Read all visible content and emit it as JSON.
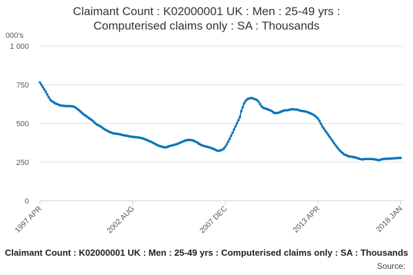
{
  "chart_data": {
    "type": "line",
    "title": "Claimant Count : K02000001 UK : Men : 25-49 yrs : Computerised claims only : SA : Thousands",
    "y_label": "000's",
    "source_label": "Source:",
    "x": [
      "1997 APR",
      "1997 MAY",
      "1997 JUN",
      "1997 JUL",
      "1997 AUG",
      "1997 SEP",
      "1997 OCT",
      "1997 NOV",
      "1997 DEC",
      "1998 JAN",
      "1998 FEB",
      "1998 MAR",
      "1998 APR",
      "1998 MAY",
      "1998 JUN",
      "1998 JUL",
      "1998 AUG",
      "1998 SEP",
      "1998 OCT",
      "1998 NOV",
      "1998 DEC",
      "1999 JAN",
      "1999 FEB",
      "1999 MAR",
      "1999 APR",
      "1999 MAY",
      "1999 JUN",
      "1999 JUL",
      "1999 AUG",
      "1999 SEP",
      "1999 OCT",
      "1999 NOV",
      "1999 DEC",
      "2000 JAN",
      "2000 FEB",
      "2000 MAR",
      "2000 APR",
      "2000 MAY",
      "2000 JUN",
      "2000 JUL",
      "2000 AUG",
      "2000 SEP",
      "2000 OCT",
      "2000 NOV",
      "2000 DEC",
      "2001 JAN",
      "2001 FEB",
      "2001 MAR",
      "2001 APR",
      "2001 MAY",
      "2001 JUN",
      "2001 JUL",
      "2001 AUG",
      "2001 SEP",
      "2001 OCT",
      "2001 NOV",
      "2001 DEC",
      "2002 JAN",
      "2002 FEB",
      "2002 MAR",
      "2002 APR",
      "2002 MAY",
      "2002 JUN",
      "2002 JUL",
      "2002 AUG",
      "2002 SEP",
      "2002 OCT",
      "2002 NOV",
      "2002 DEC",
      "2003 JAN",
      "2003 FEB",
      "2003 MAR",
      "2003 APR",
      "2003 MAY",
      "2003 JUN",
      "2003 JUL",
      "2003 AUG",
      "2003 SEP",
      "2003 OCT",
      "2003 NOV",
      "2003 DEC",
      "2004 JAN",
      "2004 FEB",
      "2004 MAR",
      "2004 APR",
      "2004 MAY",
      "2004 JUN",
      "2004 JUL",
      "2004 AUG",
      "2004 SEP",
      "2004 OCT",
      "2004 NOV",
      "2004 DEC",
      "2005 JAN",
      "2005 FEB",
      "2005 MAR",
      "2005 APR",
      "2005 MAY",
      "2005 JUN",
      "2005 JUL",
      "2005 AUG",
      "2005 SEP",
      "2005 OCT",
      "2005 NOV",
      "2005 DEC",
      "2006 JAN",
      "2006 FEB",
      "2006 MAR",
      "2006 APR",
      "2006 MAY",
      "2006 JUN",
      "2006 JUL",
      "2006 AUG",
      "2006 SEP",
      "2006 OCT",
      "2006 NOV",
      "2006 DEC",
      "2007 JAN",
      "2007 FEB",
      "2007 MAR",
      "2007 APR",
      "2007 MAY",
      "2007 JUN",
      "2007 JUL",
      "2007 AUG",
      "2007 SEP",
      "2007 OCT",
      "2007 NOV",
      "2007 DEC",
      "2008 JAN",
      "2008 FEB",
      "2008 MAR",
      "2008 APR",
      "2008 MAY",
      "2008 JUN",
      "2008 JUL",
      "2008 AUG",
      "2008 SEP",
      "2008 OCT",
      "2008 NOV",
      "2008 DEC",
      "2009 JAN",
      "2009 FEB",
      "2009 MAR",
      "2009 APR",
      "2009 MAY",
      "2009 JUN",
      "2009 JUL",
      "2009 AUG",
      "2009 SEP",
      "2009 OCT",
      "2009 NOV",
      "2009 DEC",
      "2010 JAN",
      "2010 FEB",
      "2010 MAR",
      "2010 APR",
      "2010 MAY",
      "2010 JUN",
      "2010 JUL",
      "2010 AUG",
      "2010 SEP",
      "2010 OCT",
      "2010 NOV",
      "2010 DEC",
      "2011 JAN",
      "2011 FEB",
      "2011 MAR",
      "2011 APR",
      "2011 MAY",
      "2011 JUN",
      "2011 JUL",
      "2011 AUG",
      "2011 SEP",
      "2011 OCT",
      "2011 NOV",
      "2011 DEC",
      "2012 JAN",
      "2012 FEB",
      "2012 MAR",
      "2012 APR",
      "2012 MAY",
      "2012 JUN",
      "2012 JUL",
      "2012 AUG",
      "2012 SEP",
      "2012 OCT",
      "2012 NOV",
      "2012 DEC",
      "2013 JAN",
      "2013 FEB",
      "2013 MAR",
      "2013 APR",
      "2013 MAY",
      "2013 JUN",
      "2013 JUL",
      "2013 AUG",
      "2013 SEP",
      "2013 OCT",
      "2013 NOV",
      "2013 DEC",
      "2014 JAN",
      "2014 FEB",
      "2014 MAR",
      "2014 APR",
      "2014 MAY",
      "2014 JUN",
      "2014 JUL",
      "2014 AUG",
      "2014 SEP",
      "2014 OCT",
      "2014 NOV",
      "2014 DEC",
      "2015 JAN",
      "2015 FEB",
      "2015 MAR",
      "2015 APR",
      "2015 MAY",
      "2015 JUN",
      "2015 JUL",
      "2015 AUG",
      "2015 SEP",
      "2015 OCT",
      "2015 NOV",
      "2015 DEC",
      "2016 JAN",
      "2016 FEB",
      "2016 MAR",
      "2016 APR",
      "2016 MAY",
      "2016 JUN",
      "2016 JUL",
      "2016 AUG",
      "2016 SEP",
      "2016 OCT",
      "2016 NOV",
      "2016 DEC",
      "2017 JAN",
      "2017 FEB",
      "2017 MAR",
      "2017 APR",
      "2017 MAY",
      "2017 JUN",
      "2017 JUL",
      "2017 AUG",
      "2017 SEP",
      "2017 OCT",
      "2017 NOV",
      "2017 DEC",
      "2018 JAN"
    ],
    "series": [
      {
        "color": "#0b75b8",
        "values": [
          765,
          750,
          735,
          720,
          705,
          688,
          670,
          655,
          645,
          640,
          633,
          628,
          625,
          620,
          617,
          615,
          614,
          613,
          612,
          612,
          612,
          612,
          611,
          610,
          605,
          600,
          592,
          585,
          577,
          568,
          560,
          553,
          547,
          540,
          533,
          527,
          520,
          512,
          503,
          495,
          490,
          485,
          480,
          473,
          466,
          460,
          455,
          450,
          445,
          442,
          438,
          435,
          434,
          433,
          432,
          430,
          428,
          425,
          423,
          422,
          420,
          418,
          416,
          415,
          413,
          412,
          411,
          410,
          409,
          408,
          405,
          403,
          400,
          396,
          392,
          388,
          384,
          380,
          375,
          370,
          365,
          360,
          356,
          353,
          350,
          348,
          346,
          345,
          348,
          352,
          355,
          357,
          360,
          362,
          365,
          368,
          372,
          376,
          380,
          385,
          388,
          391,
          393,
          393,
          392,
          392,
          388,
          384,
          380,
          374,
          368,
          362,
          358,
          355,
          352,
          350,
          348,
          345,
          342,
          338,
          335,
          330,
          325,
          322,
          324,
          327,
          330,
          338,
          350,
          365,
          382,
          400,
          420,
          440,
          460,
          480,
          500,
          520,
          540,
          580,
          605,
          630,
          645,
          655,
          660,
          662,
          665,
          662,
          658,
          655,
          650,
          640,
          625,
          610,
          602,
          598,
          595,
          592,
          588,
          585,
          580,
          573,
          568,
          567,
          568,
          570,
          574,
          578,
          582,
          584,
          585,
          585,
          588,
          590,
          592,
          591,
          590,
          590,
          588,
          585,
          582,
          580,
          579,
          578,
          575,
          572,
          568,
          564,
          560,
          555,
          548,
          540,
          530,
          515,
          497,
          480,
          467,
          453,
          440,
          427,
          413,
          400,
          387,
          373,
          360,
          348,
          336,
          325,
          316,
          308,
          300,
          296,
          292,
          288,
          286,
          285,
          283,
          281,
          279,
          276,
          273,
          270,
          268,
          268,
          269,
          270,
          270,
          270,
          270,
          270,
          269,
          268,
          266,
          264,
          262,
          265,
          268,
          270,
          271,
          271,
          272,
          272,
          273,
          273,
          274,
          275,
          276,
          276,
          277,
          277
        ]
      }
    ],
    "xticks": [
      "1997 APR",
      "2002 AUG",
      "2007 DEC",
      "2013 APR",
      "2018 JAN"
    ],
    "ylim": [
      0,
      1000
    ],
    "yticks": [
      0,
      250,
      500,
      750,
      {
        "value": 1000,
        "label": "1 000"
      }
    ],
    "grid": true
  }
}
